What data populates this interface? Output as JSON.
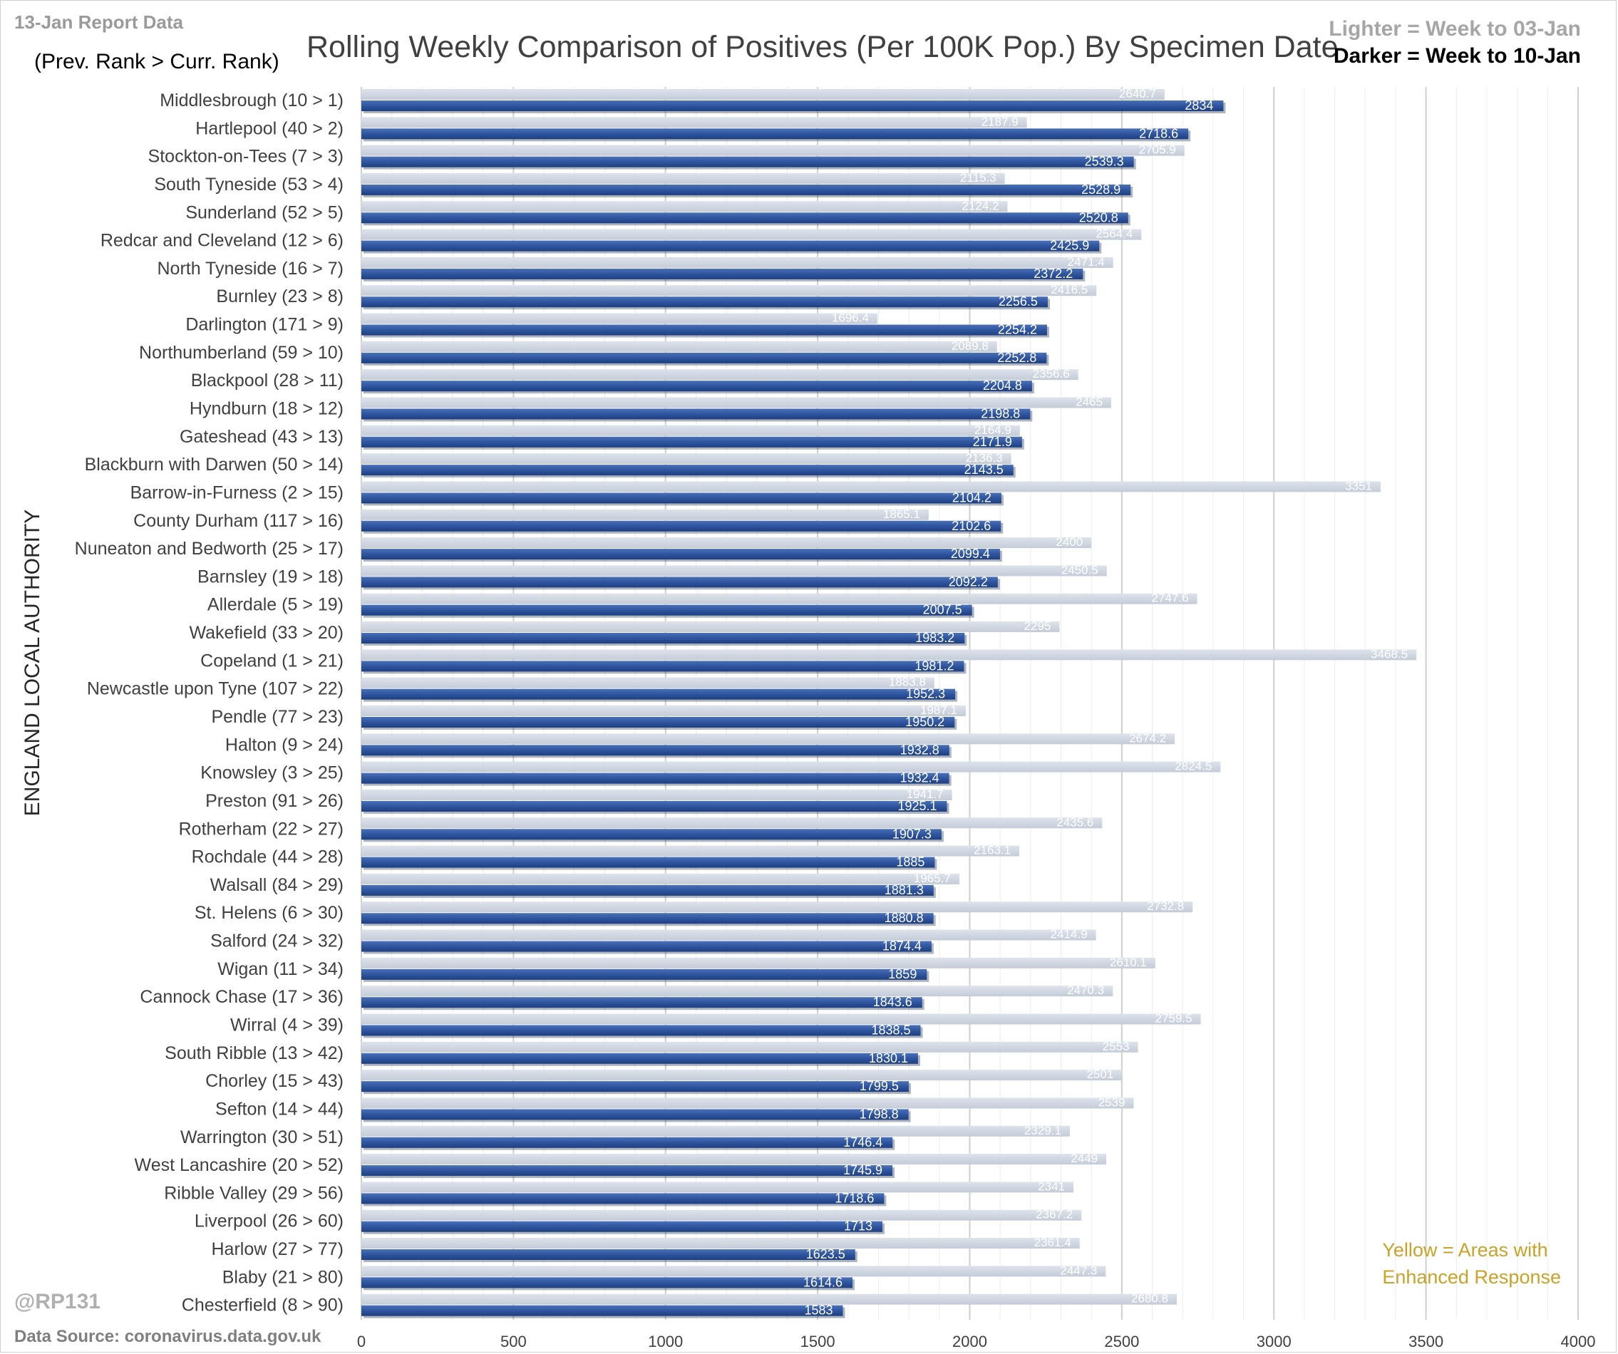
{
  "header": {
    "report_date": "13-Jan Report Data",
    "rank_note": "(Prev. Rank > Curr. Rank)",
    "title": "Rolling Weekly Comparison of Positives  (Per 100K Pop.) By Specimen Date",
    "legend_light": "Lighter =  Week to 03-Jan",
    "legend_dark": "Darker =  Week to 10-Jan"
  },
  "footer": {
    "yellow_note_line1": "Yellow = Areas with",
    "yellow_note_line2": "Enhanced Response",
    "handle": "@RP131",
    "source": "Data Source: coronavirus.data.gov.uk"
  },
  "colors": {
    "light_series": "#ccd4df",
    "dark_series": "#3a5fa8",
    "gridline": "#d9d9d9",
    "highlight_yellow": "#c9a227"
  },
  "chart_data": {
    "type": "bar",
    "orientation": "horizontal",
    "ylabel": "ENGLAND LOCAL AUTHORITY",
    "xlabel": "",
    "xlim": [
      0,
      4000
    ],
    "xticks": [
      0,
      500,
      1000,
      1500,
      2000,
      2500,
      3000,
      3500,
      4000
    ],
    "grid": true,
    "legend_position": "top-right",
    "categories": [
      "Middlesbrough (10 > 1)",
      "Hartlepool (40 > 2)",
      "Stockton-on-Tees (7 > 3)",
      "South Tyneside (53 > 4)",
      "Sunderland (52 > 5)",
      "Redcar and Cleveland (12 > 6)",
      "North Tyneside (16 > 7)",
      "Burnley (23 > 8)",
      "Darlington (171 > 9)",
      "Northumberland (59 > 10)",
      "Blackpool (28 > 11)",
      "Hyndburn (18 > 12)",
      "Gateshead (43 > 13)",
      "Blackburn with Darwen (50 > 14)",
      "Barrow-in-Furness (2 > 15)",
      "County Durham (117 > 16)",
      "Nuneaton and Bedworth (25 > 17)",
      "Barnsley (19 > 18)",
      "Allerdale (5 > 19)",
      "Wakefield (33 > 20)",
      "Copeland (1 > 21)",
      "Newcastle upon Tyne (107 > 22)",
      "Pendle (77 > 23)",
      "Halton (9 > 24)",
      "Knowsley (3 > 25)",
      "Preston (91 > 26)",
      "Rotherham (22 > 27)",
      "Rochdale (44 > 28)",
      "Walsall (84 > 29)",
      "St. Helens (6 > 30)",
      "Salford (24 > 32)",
      "Wigan (11 > 34)",
      "Cannock Chase (17 > 36)",
      "Wirral (4 > 39)",
      "South Ribble (13 > 42)",
      "Chorley (15 > 43)",
      "Sefton (14 > 44)",
      "Warrington (30 > 51)",
      "West Lancashire (20 > 52)",
      "Ribble Valley (29 > 56)",
      "Liverpool (26 > 60)",
      "Harlow (27 > 77)",
      "Blaby (21 > 80)",
      "Chesterfield (8 > 90)"
    ],
    "series": [
      {
        "name": "Week to 03-Jan",
        "values": [
          2640.7,
          2187.9,
          2705.9,
          2115.3,
          2124.2,
          2564.4,
          2471.4,
          2416.5,
          1696.4,
          2089.8,
          2356.6,
          2465,
          2164.9,
          2136.3,
          3351,
          1865.1,
          2400,
          2450.5,
          2747.6,
          2295,
          3468.5,
          1883.8,
          1987.1,
          2674.2,
          2824.5,
          1941.7,
          2435.6,
          2163.1,
          1965.7,
          2732.8,
          2414.9,
          2610.1,
          2470.3,
          2759.5,
          2553,
          2501,
          2539,
          2329.1,
          2449,
          2341,
          2367.2,
          2361.4,
          2447.3,
          2680.8
        ]
      },
      {
        "name": "Week to 10-Jan",
        "values": [
          2834,
          2718.6,
          2539.3,
          2528.9,
          2520.8,
          2425.9,
          2372.2,
          2256.5,
          2254.2,
          2252.8,
          2204.8,
          2198.8,
          2171.9,
          2143.5,
          2104.2,
          2102.6,
          2099.4,
          2092.2,
          2007.5,
          1983.2,
          1981.2,
          1952.3,
          1950.2,
          1932.8,
          1932.4,
          1925.1,
          1907.3,
          1885,
          1881.3,
          1880.8,
          1874.4,
          1859,
          1843.6,
          1838.5,
          1830.1,
          1799.5,
          1798.8,
          1746.4,
          1745.9,
          1718.6,
          1713,
          1623.5,
          1614.6,
          1583
        ]
      }
    ]
  }
}
